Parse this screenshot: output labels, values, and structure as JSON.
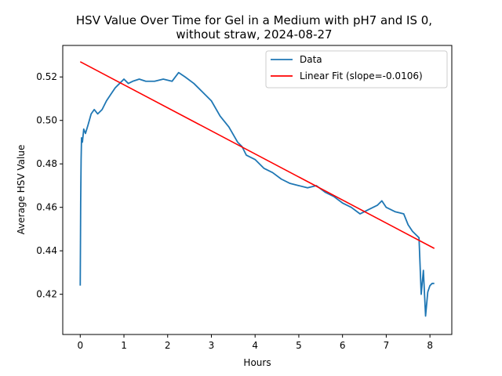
{
  "chart_data": {
    "type": "line",
    "title_line1": "HSV Value Over Time for Gel in a Medium with pH7 and IS 0,",
    "title_line2": "without straw, 2024-08-27",
    "xlabel": "Hours",
    "ylabel": "Average HSV Value",
    "xlim": [
      -0.4,
      8.5
    ],
    "ylim": [
      0.4015,
      0.5345
    ],
    "xticks": [
      0,
      1,
      2,
      3,
      4,
      5,
      6,
      7,
      8
    ],
    "yticks": [
      0.42,
      0.44,
      0.46,
      0.48,
      0.5,
      0.52
    ],
    "ytick_labels": [
      "0.42",
      "0.44",
      "0.46",
      "0.48",
      "0.50",
      "0.52"
    ],
    "legend_position": "top-right",
    "series": [
      {
        "name": "Data",
        "color": "#1f77b4",
        "x": [
          0.0,
          0.01,
          0.02,
          0.03,
          0.05,
          0.08,
          0.12,
          0.18,
          0.25,
          0.32,
          0.4,
          0.5,
          0.6,
          0.7,
          0.8,
          0.9,
          1.0,
          1.1,
          1.2,
          1.35,
          1.5,
          1.7,
          1.9,
          2.1,
          2.25,
          2.4,
          2.6,
          2.8,
          3.0,
          3.2,
          3.4,
          3.6,
          3.7,
          3.8,
          4.0,
          4.2,
          4.4,
          4.6,
          4.8,
          5.0,
          5.2,
          5.4,
          5.6,
          5.8,
          6.0,
          6.2,
          6.4,
          6.6,
          6.8,
          6.9,
          7.0,
          7.2,
          7.4,
          7.5,
          7.6,
          7.7,
          7.75,
          7.8,
          7.85,
          7.9,
          7.95,
          8.0,
          8.05,
          8.1
        ],
        "y": [
          0.424,
          0.462,
          0.482,
          0.492,
          0.49,
          0.496,
          0.494,
          0.498,
          0.503,
          0.505,
          0.503,
          0.505,
          0.509,
          0.512,
          0.515,
          0.517,
          0.519,
          0.517,
          0.518,
          0.519,
          0.518,
          0.518,
          0.519,
          0.518,
          0.522,
          0.52,
          0.517,
          0.513,
          0.509,
          0.502,
          0.497,
          0.49,
          0.488,
          0.484,
          0.482,
          0.478,
          0.476,
          0.473,
          0.471,
          0.47,
          0.469,
          0.47,
          0.467,
          0.465,
          0.462,
          0.46,
          0.457,
          0.459,
          0.461,
          0.463,
          0.46,
          0.458,
          0.457,
          0.452,
          0.449,
          0.447,
          0.446,
          0.42,
          0.431,
          0.41,
          0.421,
          0.424,
          0.425,
          0.425
        ]
      },
      {
        "name": "Linear Fit (slope=-0.0106)",
        "color": "#ff0000",
        "x": [
          0.0,
          8.1
        ],
        "y": [
          0.527,
          0.4411
        ]
      }
    ]
  }
}
